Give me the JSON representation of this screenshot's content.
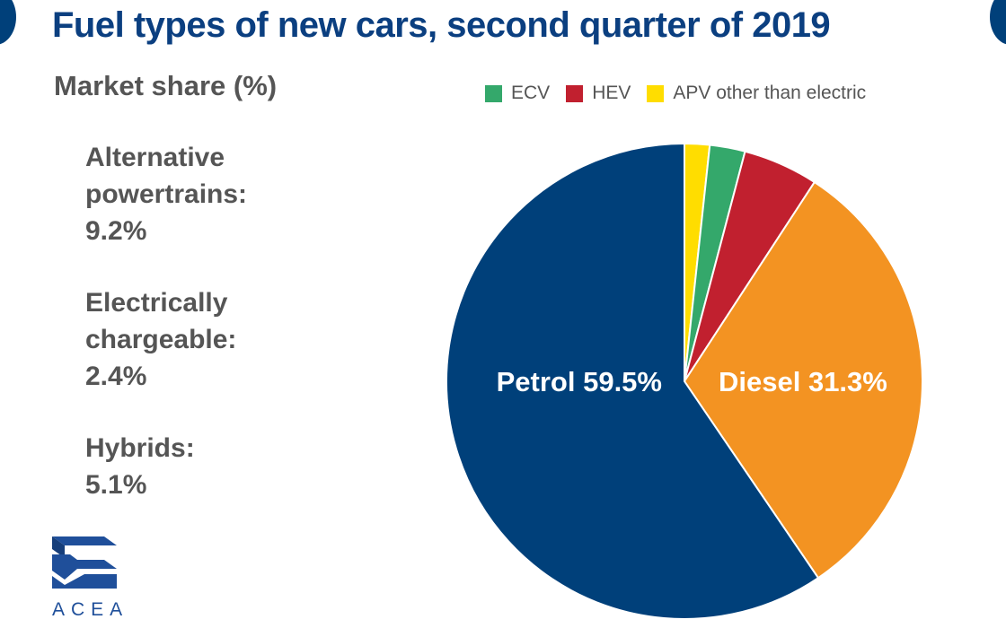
{
  "header": {
    "title": "Fuel types of new cars, second quarter of 2019",
    "subtitle": "Market share (%)"
  },
  "stats": [
    {
      "lines": [
        "Alternative",
        "powertrains:",
        "9.2%"
      ]
    },
    {
      "lines": [
        "Electrically",
        "chargeable:",
        "2.4%"
      ]
    },
    {
      "lines": [
        "Hybrids:",
        "5.1%"
      ]
    }
  ],
  "logo": {
    "text": "ACEA",
    "icon": "acea-logo-icon"
  },
  "colors": {
    "brand": "#0b3f80",
    "text_gray": "#555555",
    "petrol": "#00407a",
    "diesel": "#f39322",
    "hev": "#c1202f",
    "ecv": "#34a86b",
    "apv": "#ffdd00"
  },
  "chart_data": {
    "type": "pie",
    "title": "Fuel types of new cars, second quarter of 2019",
    "subtitle": "Market share (%)",
    "legend_position": "top",
    "legend": [
      {
        "name": "ECV",
        "color": "#34a86b"
      },
      {
        "name": "HEV",
        "color": "#c1202f"
      },
      {
        "name": "APV other than electric",
        "color": "#ffdd00"
      }
    ],
    "slices": [
      {
        "key": "apv",
        "value": 1.7,
        "color": "#ffdd00",
        "label": ""
      },
      {
        "key": "ecv",
        "value": 2.4,
        "color": "#34a86b",
        "label": ""
      },
      {
        "key": "hev",
        "value": 5.1,
        "color": "#c1202f",
        "label": ""
      },
      {
        "key": "diesel",
        "value": 31.3,
        "color": "#f39322",
        "label": "Diesel 31.3%"
      },
      {
        "key": "petrol",
        "value": 59.5,
        "color": "#00407a",
        "label": "Petrol 59.5%"
      }
    ]
  }
}
